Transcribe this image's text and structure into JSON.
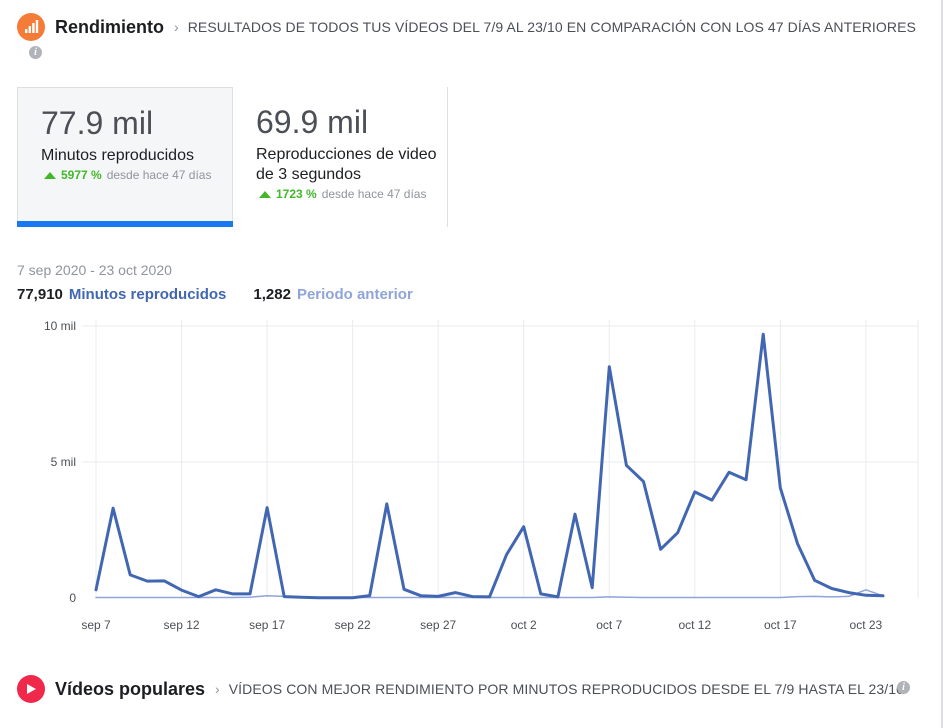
{
  "header": {
    "icon": "bar-chart-icon",
    "title": "Rendimiento",
    "subtitle": "RESULTADOS DE TODOS TUS VÍDEOS DEL 7/9 AL 23/10 EN COMPARACIÓN CON LOS 47 DÍAS ANTERIORES",
    "info": "i"
  },
  "metrics": [
    {
      "value": "77.9 mil",
      "label": "Minutos reproducidos",
      "change_pct": "5977 %",
      "change_note": "desde hace 47 días",
      "selected": true
    },
    {
      "value": "69.9 mil",
      "label": "Reproducciones de video de 3 segundos",
      "change_pct": "1723 %",
      "change_note": "desde hace 47 días",
      "selected": false
    }
  ],
  "date_range": "7 sep 2020 - 23 oct 2020",
  "legend": {
    "current_value": "77,910",
    "current_name": "Minutos reproducidos",
    "previous_value": "1,282",
    "previous_name": "Periodo anterior"
  },
  "colors": {
    "current_line": "#4267b2",
    "previous_line": "#8fa4d8",
    "accent": "#1877f2",
    "positive": "#42b72a"
  },
  "chart_data": {
    "type": "line",
    "xlabel": "",
    "ylabel": "",
    "ylim": [
      0,
      10000
    ],
    "y_ticks": [
      {
        "value": 0,
        "label": "0"
      },
      {
        "value": 5000,
        "label": "5 mil"
      },
      {
        "value": 10000,
        "label": "10 mil"
      }
    ],
    "x_ticks": [
      {
        "day": 0,
        "label": "sep 7"
      },
      {
        "day": 5,
        "label": "sep 12"
      },
      {
        "day": 10,
        "label": "sep 17"
      },
      {
        "day": 15,
        "label": "sep 22"
      },
      {
        "day": 20,
        "label": "sep 27"
      },
      {
        "day": 25,
        "label": "oct 2"
      },
      {
        "day": 30,
        "label": "oct 7"
      },
      {
        "day": 35,
        "label": "oct 12"
      },
      {
        "day": 40,
        "label": "oct 17"
      },
      {
        "day": 45,
        "label": "oct 23"
      }
    ],
    "grid": true,
    "series": [
      {
        "name": "Minutos reproducidos",
        "values": [
          300,
          3300,
          850,
          620,
          630,
          290,
          50,
          300,
          150,
          150,
          3320,
          50,
          30,
          10,
          10,
          10,
          90,
          3460,
          320,
          80,
          60,
          200,
          50,
          40,
          1600,
          2620,
          150,
          40,
          3080,
          380,
          8500,
          4880,
          4280,
          1790,
          2400,
          3900,
          3600,
          4620,
          4350,
          9700,
          4050,
          2000,
          650,
          350,
          200,
          100,
          80
        ]
      },
      {
        "name": "Periodo anterior",
        "values": [
          20,
          20,
          20,
          20,
          20,
          20,
          20,
          20,
          20,
          30,
          80,
          60,
          20,
          20,
          20,
          20,
          20,
          20,
          20,
          20,
          20,
          20,
          20,
          20,
          20,
          20,
          20,
          20,
          20,
          20,
          40,
          30,
          20,
          20,
          20,
          20,
          20,
          20,
          20,
          20,
          20,
          50,
          60,
          40,
          60,
          300,
          80
        ]
      }
    ]
  },
  "popular": {
    "icon": "play-icon",
    "title": "Vídeos populares",
    "subtitle": "VÍDEOS CON MEJOR RENDIMIENTO POR MINUTOS REPRODUCIDOS DESDE EL 7/9 HASTA EL 23/10",
    "info": "i"
  }
}
